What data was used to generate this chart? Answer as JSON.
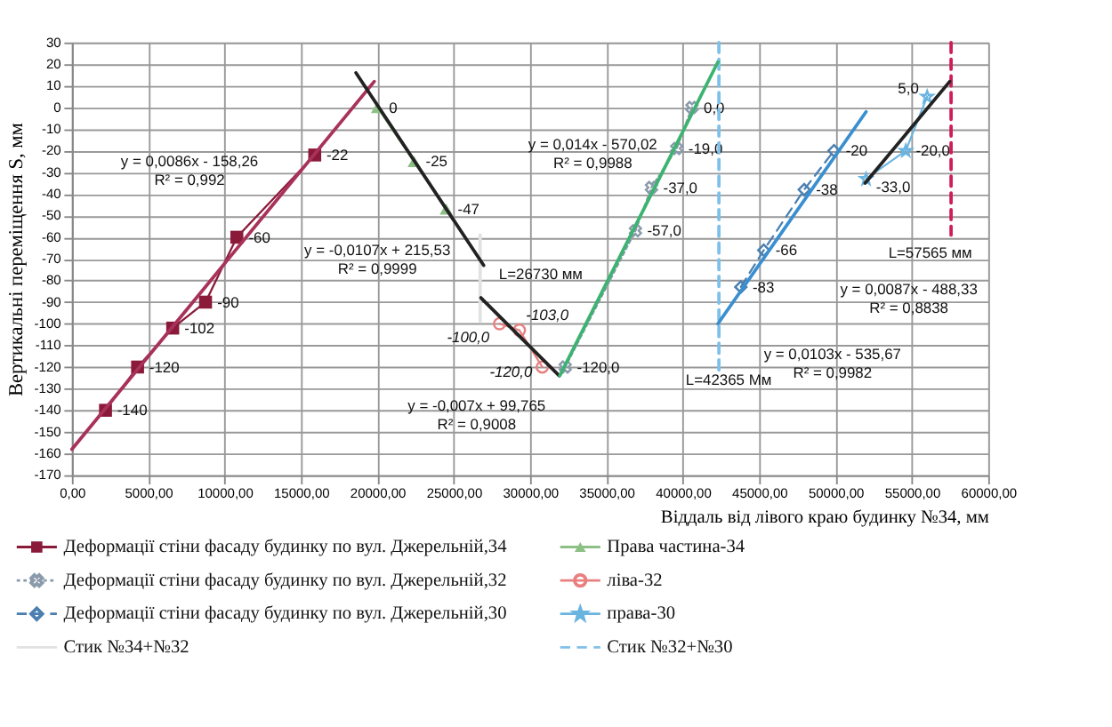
{
  "chart_data": {
    "type": "line",
    "ylabel": "Вертикальні переміщення  S, мм",
    "xlabel": "Віддаль від  лівого краю будинку №34, мм",
    "xlim": [
      0,
      60000
    ],
    "ylim": [
      -170,
      30
    ],
    "xticks": [
      {
        "value": 0,
        "label": "0,00"
      },
      {
        "value": 5000,
        "label": "5000,00"
      },
      {
        "value": 10000,
        "label": "10000,00"
      },
      {
        "value": 15000,
        "label": "15000,00"
      },
      {
        "value": 20000,
        "label": "20000,00"
      },
      {
        "value": 25000,
        "label": "25000,00"
      },
      {
        "value": 30000,
        "label": "30000,00"
      },
      {
        "value": 35000,
        "label": "35000,00"
      },
      {
        "value": 40000,
        "label": "40000,00"
      },
      {
        "value": 45000,
        "label": "45000,00"
      },
      {
        "value": 50000,
        "label": "50000,00"
      },
      {
        "value": 55000,
        "label": "55000,00"
      },
      {
        "value": 60000,
        "label": "60000,00"
      }
    ],
    "yticks": [
      30,
      20,
      10,
      0,
      -10,
      -20,
      -30,
      -40,
      -50,
      -60,
      -70,
      -80,
      -90,
      -100,
      -110,
      -120,
      -130,
      -140,
      -150,
      -160,
      -170
    ],
    "grid": true,
    "legend": "bottom",
    "series": [
      {
        "name": "Деформації стіни фасаду будинку по вул. Джерельній,34",
        "color": "#8b1a3a",
        "marker": "square",
        "line_style": "solid",
        "x": [
          2200,
          4300,
          6600,
          8750,
          10800,
          15900
        ],
        "values": [
          -140,
          -120,
          -102,
          -90,
          -60,
          -22
        ],
        "value_labels": [
          "-140",
          "-120",
          "-102",
          "-90",
          "-60",
          "-22"
        ]
      },
      {
        "name": "Права частина-34",
        "color": "#8cc084",
        "marker": "triangle",
        "line_style": "solid",
        "x": [
          20000,
          22400,
          24500
        ],
        "values": [
          0,
          -25,
          -47
        ],
        "value_labels": [
          "0",
          "-25",
          "-47"
        ]
      },
      {
        "name": "Деформації стіни фасаду будинку по вул. Джерельній,32",
        "color": "#8a9aaa",
        "marker": "cross",
        "line_style": "dotted",
        "x": [
          40600,
          39600,
          37950,
          36900,
          32300
        ],
        "values": [
          0,
          -19,
          -37,
          -57,
          -120
        ],
        "value_labels": [
          "0,0",
          "-19,0",
          "-37,0",
          "-57,0",
          "-120,0"
        ]
      },
      {
        "name": "ліва-32",
        "color": "#e88080",
        "marker": "circle",
        "line_style": "solid",
        "x": [
          28000,
          29300,
          30800
        ],
        "values": [
          -100,
          -103,
          -120
        ],
        "value_labels": [
          "-100,0",
          "-103,0",
          "-120,0"
        ]
      },
      {
        "name": "Деформації стіни фасаду будинку по вул. Джерельній,30",
        "color": "#4a7fb0",
        "marker": "diamond",
        "line_style": "dashed",
        "x": [
          43800,
          45300,
          47950,
          49900
        ],
        "values": [
          -83,
          -66,
          -38,
          -20
        ],
        "value_labels": [
          "-83",
          "-66",
          "-38",
          "-20"
        ]
      },
      {
        "name": "права-30",
        "color": "#6ab4e0",
        "marker": "star",
        "line_style": "solid",
        "x": [
          52000,
          54600,
          56000
        ],
        "values": [
          -33,
          -20,
          5
        ],
        "value_labels": [
          "-33,0",
          "-20,0",
          "5,0"
        ]
      },
      {
        "name": "Стик  №34+№32",
        "color": "#e2e2e2",
        "marker": "none",
        "line_style": "solid",
        "x": [
          26730,
          26730
        ],
        "values": [
          -59,
          -99
        ]
      },
      {
        "name": "Стик №32+№30",
        "color": "#7fc0ea",
        "marker": "none",
        "line_style": "dashed",
        "x": [
          42365,
          42365
        ],
        "values": [
          30,
          -122
        ]
      },
      {
        "color": "#d01c5c",
        "marker": "none",
        "line_style": "dashed",
        "x": [
          57565,
          57565
        ],
        "values": [
          30,
          -59
        ]
      },
      {
        "color": "#a8325a",
        "marker": "none",
        "line_style": "solid",
        "x": [
          0,
          19800
        ],
        "values": [
          -158,
          12
        ]
      },
      {
        "color": "#222222",
        "marker": "none",
        "line_style": "solid",
        "x": [
          18600,
          26960
        ],
        "values": [
          16,
          -73
        ]
      },
      {
        "color": "#222222",
        "marker": "none",
        "line_style": "solid",
        "x": [
          26780,
          31900
        ],
        "values": [
          -88,
          -124
        ]
      },
      {
        "color": "#3cb371",
        "marker": "none",
        "line_style": "solid",
        "x": [
          31950,
          42300
        ],
        "values": [
          -124,
          21
        ]
      },
      {
        "color": "#3a8fd0",
        "marker": "none",
        "line_style": "solid",
        "x": [
          42300,
          52000
        ],
        "values": [
          -100,
          -2
        ]
      },
      {
        "color": "#222222",
        "marker": "none",
        "line_style": "solid",
        "x": [
          51940,
          57480
        ],
        "values": [
          -35,
          12
        ]
      }
    ],
    "annotations": [
      "y = 0,0086x - 158,26\nR² = 0,992",
      "y = -0,0107x + 215,53\nR² = 0,9999",
      "L=26730 мм",
      "y = -0,007x + 99,765\nR² = 0,9008",
      "y = 0,014x - 570,02\nR² = 0,9988",
      "L=42365 Мм",
      "y = 0,0103x - 535,67\nR² = 0,9982",
      "L=57565 мм",
      "y = 0,0087x - 488,33\nR² = 0,8838"
    ]
  }
}
